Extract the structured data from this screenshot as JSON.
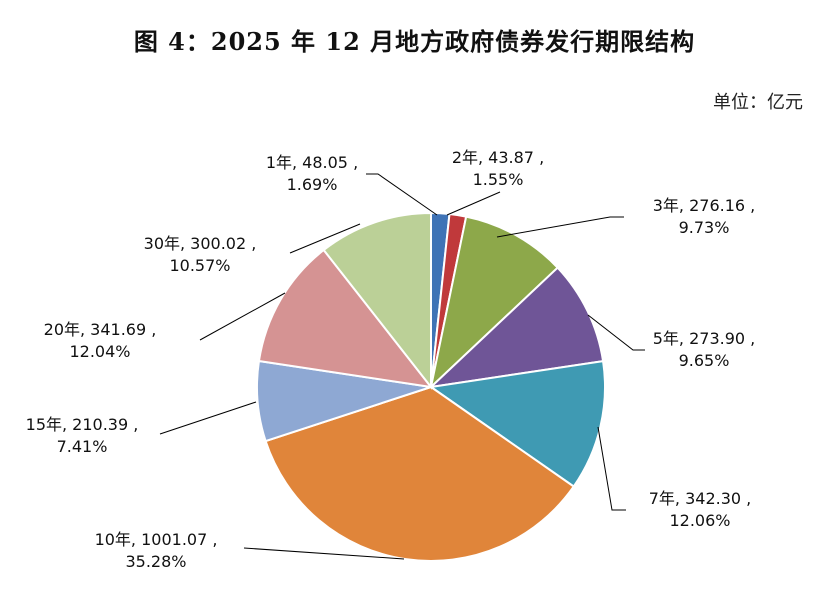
{
  "chart_data": {
    "type": "pie",
    "title": "图 4：2025 年 12 月地方政府债券发行期限结构",
    "unit": "单位：亿元",
    "categories": [
      "1年",
      "2年",
      "3年",
      "5年",
      "7年",
      "10年",
      "15年",
      "20年",
      "30年"
    ],
    "values": [
      48.05,
      43.87,
      276.16,
      273.9,
      342.3,
      1001.07,
      210.39,
      341.69,
      300.02
    ],
    "percent_labels": [
      "1.69%",
      "1.55%",
      "9.73%",
      "9.65%",
      "12.06%",
      "35.28%",
      "7.41%",
      "12.04%",
      "10.57%"
    ],
    "value_labels": [
      "48.05",
      "43.87",
      "276.16",
      "273.90",
      "342.30",
      "1001.07",
      "210.39",
      "341.69",
      "300.02"
    ],
    "colors": [
      "#3F73B6",
      "#C0393B",
      "#8DA84A",
      "#6F5597",
      "#3F9AB3",
      "#E0853A",
      "#8EA8D3",
      "#D59393",
      "#BBD097"
    ],
    "legend": "none"
  }
}
